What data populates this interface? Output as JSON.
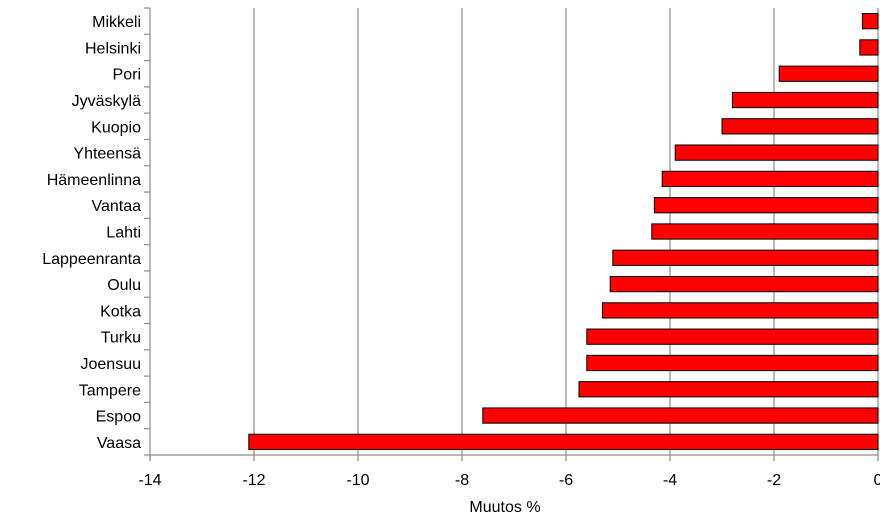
{
  "chart_data": {
    "type": "bar",
    "orientation": "horizontal",
    "title": "",
    "xlabel": "Muutos %",
    "ylabel": "",
    "xlim": [
      -14,
      0
    ],
    "xticks": [
      -14,
      -12,
      -10,
      -8,
      -6,
      -4,
      -2,
      0
    ],
    "xtick_labels": [
      "-14",
      "-12",
      "-10",
      "-8",
      "-6",
      "-4",
      "-2",
      "0"
    ],
    "grid": "vertical",
    "legend": "none",
    "bar_color": "#ff0000",
    "bar_edge_color": "#000000",
    "grid_color": "#8c8c8c",
    "categories": [
      "Mikkeli",
      "Helsinki",
      "Pori",
      "Jyväskylä",
      "Kuopio",
      "Yhteensä",
      "Hämeenlinna",
      "Vantaa",
      "Lahti",
      "Lappeenranta",
      "Oulu",
      "Kotka",
      "Turku",
      "Joensuu",
      "Tampere",
      "Espoo",
      "Vaasa"
    ],
    "values": [
      -0.3,
      -0.35,
      -1.9,
      -2.8,
      -3.0,
      -3.9,
      -4.15,
      -4.3,
      -4.35,
      -5.1,
      -5.15,
      -5.3,
      -5.6,
      -5.6,
      -5.75,
      -7.6,
      -12.1
    ]
  }
}
